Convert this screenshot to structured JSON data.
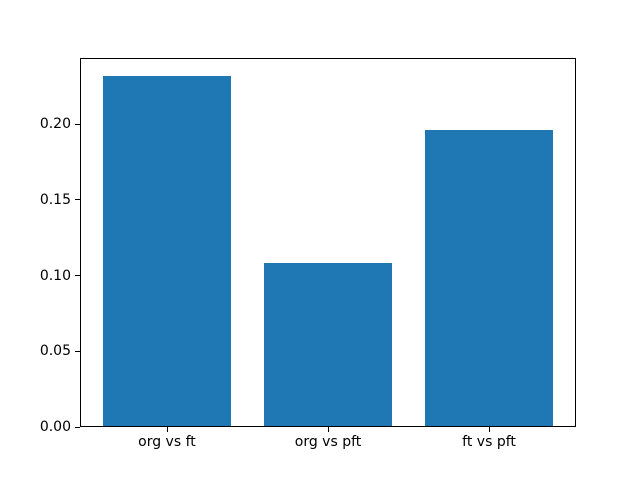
{
  "figure": {
    "background": "#ffffff",
    "bar_color": "#1f77b4",
    "axis_color": "#000000",
    "text_color": "#000000"
  },
  "chart_data": {
    "type": "bar",
    "categories": [
      "org vs ft",
      "org vs pft",
      "ft vs pft"
    ],
    "values": [
      0.232,
      0.108,
      0.196
    ],
    "title": "",
    "xlabel": "",
    "ylabel": "",
    "ylim": [
      0,
      0.2436
    ],
    "xlim": [
      -0.54,
      2.54
    ],
    "yticks": [
      0.0,
      0.05,
      0.1,
      0.15,
      0.2
    ],
    "ytick_labels": [
      "0.00",
      "0.05",
      "0.10",
      "0.15",
      "0.20"
    ],
    "bar_width_units": 0.8,
    "grid": false,
    "legend": "none"
  }
}
